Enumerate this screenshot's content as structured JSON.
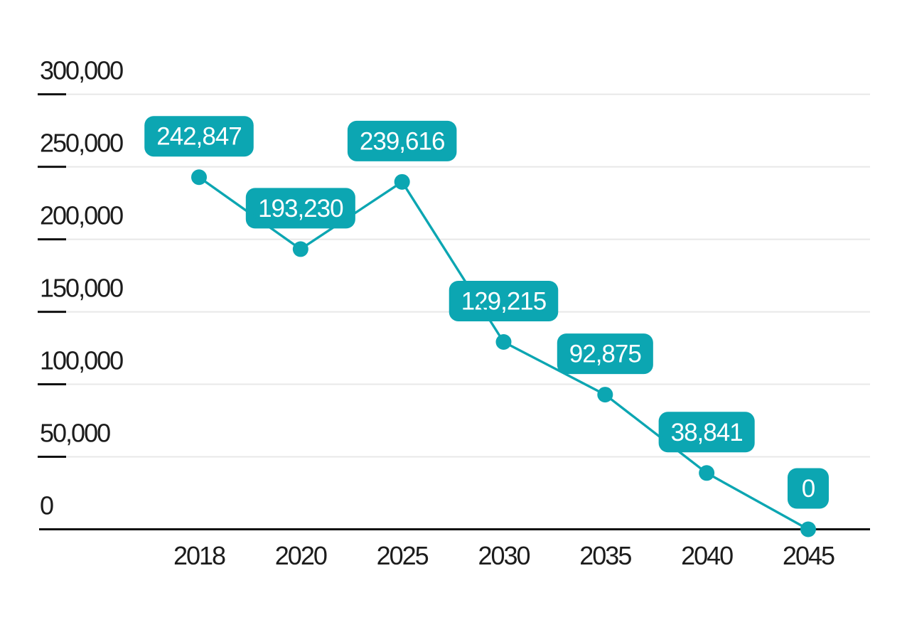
{
  "chart_data": {
    "type": "line",
    "x": [
      "2018",
      "2020",
      "2025",
      "2030",
      "2035",
      "2040",
      "2045"
    ],
    "series": [
      {
        "name": "series-1",
        "values": [
          242847,
          193230,
          239616,
          129215,
          92875,
          38841,
          0
        ]
      }
    ],
    "point_labels": [
      "242,847",
      "193,230",
      "239,616",
      "129,215",
      "92,875",
      "38,841",
      "0"
    ],
    "y_tick_labels": [
      "300,000",
      "250,000",
      "200,000",
      "150,000",
      "100,000",
      "50,000",
      "0"
    ],
    "y_tick_values": [
      300000,
      250000,
      200000,
      150000,
      100000,
      50000,
      0
    ],
    "ylim": [
      0,
      300000
    ],
    "grid": "horizontal",
    "legend": "none",
    "markers": "circle",
    "colors": {
      "series": "#0ca6b2",
      "label_bg": "#0ca6b2",
      "label_text": "#ffffff",
      "gridline": "#e8e8e8",
      "axis": "#111111",
      "tick_text": "#1c1c1c",
      "background": "#ffffff"
    }
  }
}
